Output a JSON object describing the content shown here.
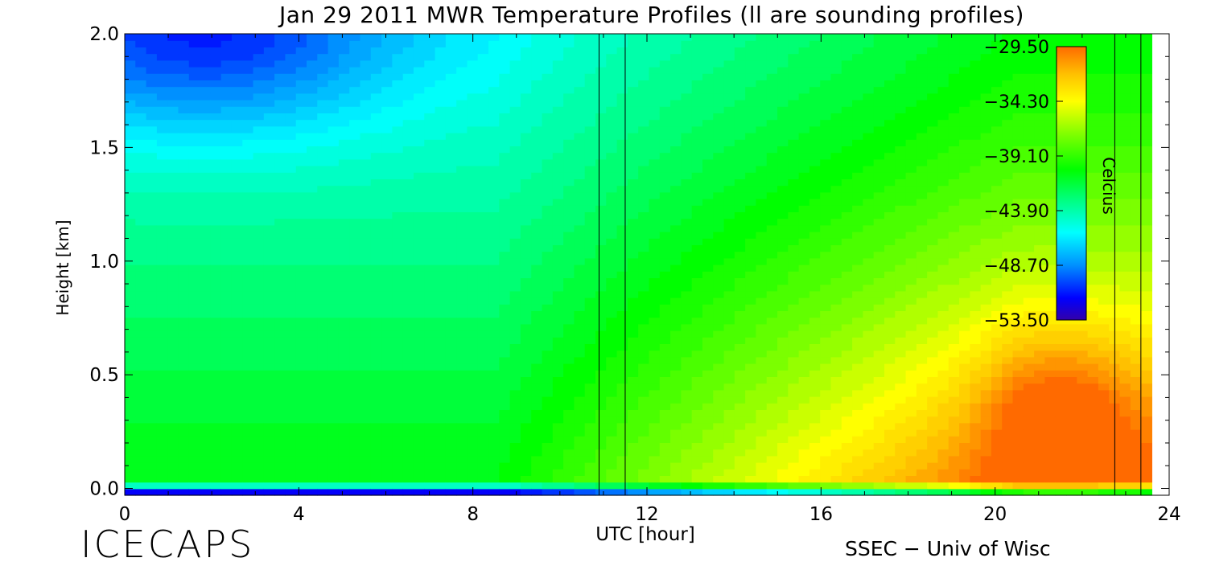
{
  "chart_data": {
    "type": "heatmap",
    "title": "Jan 29 2011 MWR Temperature Profiles (ll are sounding profiles)",
    "xlabel": "UTC [hour]",
    "ylabel": "Height [km]",
    "xlim": [
      0,
      24
    ],
    "ylim": [
      -0.03,
      2.0
    ],
    "x_ticks": [
      "0",
      "4",
      "8",
      "12",
      "16",
      "20",
      "24"
    ],
    "y_ticks": [
      "0.0",
      "0.5",
      "1.0",
      "1.5",
      "2.0"
    ],
    "x_tick_values": [
      0,
      4,
      8,
      12,
      16,
      20,
      24
    ],
    "y_tick_values": [
      0.0,
      0.5,
      1.0,
      1.5,
      2.0
    ],
    "sounding_profile_hours": [
      10.9,
      11.5,
      22.75,
      23.35
    ],
    "data_end_hour": 23.6,
    "colorbar": {
      "label": "Celcius",
      "tick_labels": [
        "−29.50",
        "−34.30",
        "−39.10",
        "−43.90",
        "−48.70",
        "−53.50"
      ],
      "tick_values": [
        -29.5,
        -34.3,
        -39.1,
        -43.9,
        -48.7,
        -53.5
      ],
      "range": [
        -53.5,
        -29.5
      ],
      "colors": [
        "#3300aa",
        "#0000ff",
        "#0090ff",
        "#00ffff",
        "#00ff7f",
        "#00ff00",
        "#80ff00",
        "#ffff00",
        "#ffc000",
        "#ff6a00"
      ]
    },
    "grid": false
  },
  "footer": {
    "logo": "ICECAPS",
    "credit": "SSEC − Univ of Wisc"
  }
}
